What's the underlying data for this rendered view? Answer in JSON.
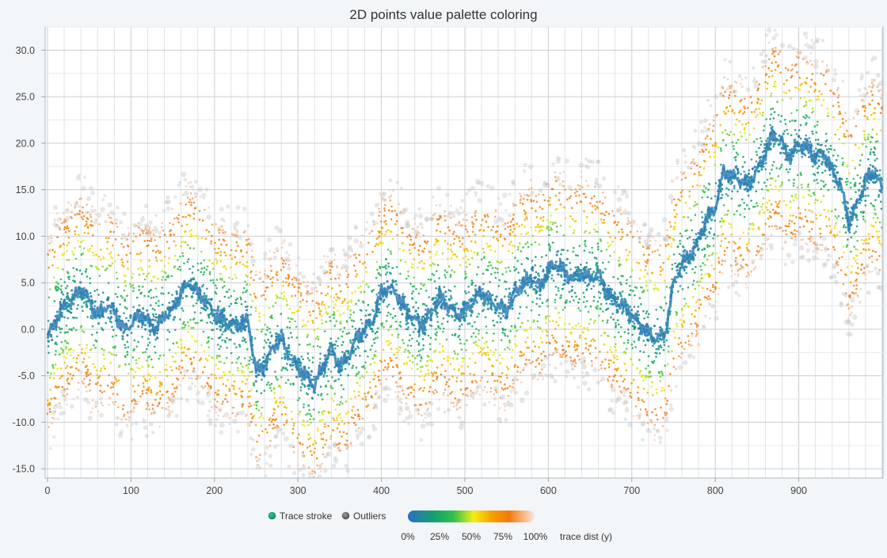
{
  "chart_data": {
    "type": "scatter",
    "title": "2D points value palette coloring",
    "xlabel": "",
    "ylabel": "",
    "xlim": [
      0,
      1000
    ],
    "ylim": [
      -16,
      32.5
    ],
    "x_ticks": [
      0,
      100,
      200,
      300,
      400,
      500,
      600,
      700,
      800,
      900
    ],
    "y_ticks": [
      "30.0",
      "25.0",
      "20.0",
      "15.0",
      "10.0",
      "5.0",
      "0.0",
      "-5.0",
      "-10.0",
      "-15.0"
    ],
    "y_tick_values": [
      30,
      25,
      20,
      15,
      10,
      5,
      0,
      -5,
      -10,
      -15
    ],
    "grid": true,
    "legend_position": "bottom-center",
    "series": [
      {
        "name": "Trace stroke",
        "color": "#2f7fb6",
        "legend_color": "#17976e",
        "x": [
          0,
          10,
          20,
          30,
          40,
          50,
          60,
          70,
          80,
          90,
          100,
          110,
          120,
          130,
          140,
          150,
          160,
          170,
          180,
          190,
          200,
          210,
          220,
          230,
          240,
          250,
          260,
          270,
          280,
          290,
          300,
          310,
          320,
          330,
          340,
          350,
          360,
          370,
          380,
          390,
          400,
          410,
          420,
          430,
          440,
          450,
          460,
          470,
          480,
          490,
          500,
          510,
          520,
          530,
          540,
          550,
          560,
          570,
          580,
          590,
          600,
          610,
          620,
          630,
          640,
          650,
          660,
          670,
          680,
          690,
          700,
          710,
          720,
          730,
          740,
          750,
          760,
          770,
          780,
          790,
          800,
          810,
          820,
          830,
          840,
          850,
          860,
          870,
          880,
          890,
          900,
          910,
          920,
          930,
          940,
          950,
          960,
          970,
          980,
          990,
          1000
        ],
        "y": [
          -1,
          1,
          2.5,
          3,
          4.5,
          3,
          1.5,
          2.5,
          2,
          0,
          0.5,
          1.5,
          1,
          0,
          1.5,
          2,
          4,
          5,
          4,
          3,
          1.5,
          1,
          0.5,
          0.5,
          1,
          -4.5,
          -4,
          -2,
          -1,
          -3,
          -4,
          -5,
          -6,
          -4,
          -2,
          -4,
          -3,
          -1,
          0,
          1,
          4,
          4.5,
          3.5,
          2,
          1,
          0.5,
          2,
          3.5,
          2.5,
          1.5,
          2,
          3,
          4,
          3,
          2.5,
          2,
          4,
          5,
          5.5,
          4.5,
          6.5,
          7,
          6,
          5.5,
          6,
          5.5,
          6,
          4,
          3,
          2.5,
          1.5,
          0.5,
          -0.5,
          -1,
          -0.5,
          5,
          7,
          8,
          9.5,
          12,
          13,
          17,
          16.5,
          16,
          15.5,
          17,
          19,
          21,
          20,
          18.5,
          20,
          19.5,
          18.5,
          19,
          17,
          15.5,
          11.5,
          13.5,
          16,
          17,
          15
        ],
        "band_halfwidth": 10.5
      },
      {
        "name": "Outliers",
        "color": "#6b6b6b"
      }
    ],
    "palette": {
      "label": "trace dist (y)",
      "stops": [
        "0%",
        "25%",
        "50%",
        "75%",
        "100%"
      ],
      "colors": [
        "#2c6fc4",
        "#17a36b",
        "#30c04a",
        "#f3ef15",
        "#f7a000",
        "#f37a0f",
        "#f5d3c4"
      ]
    }
  }
}
